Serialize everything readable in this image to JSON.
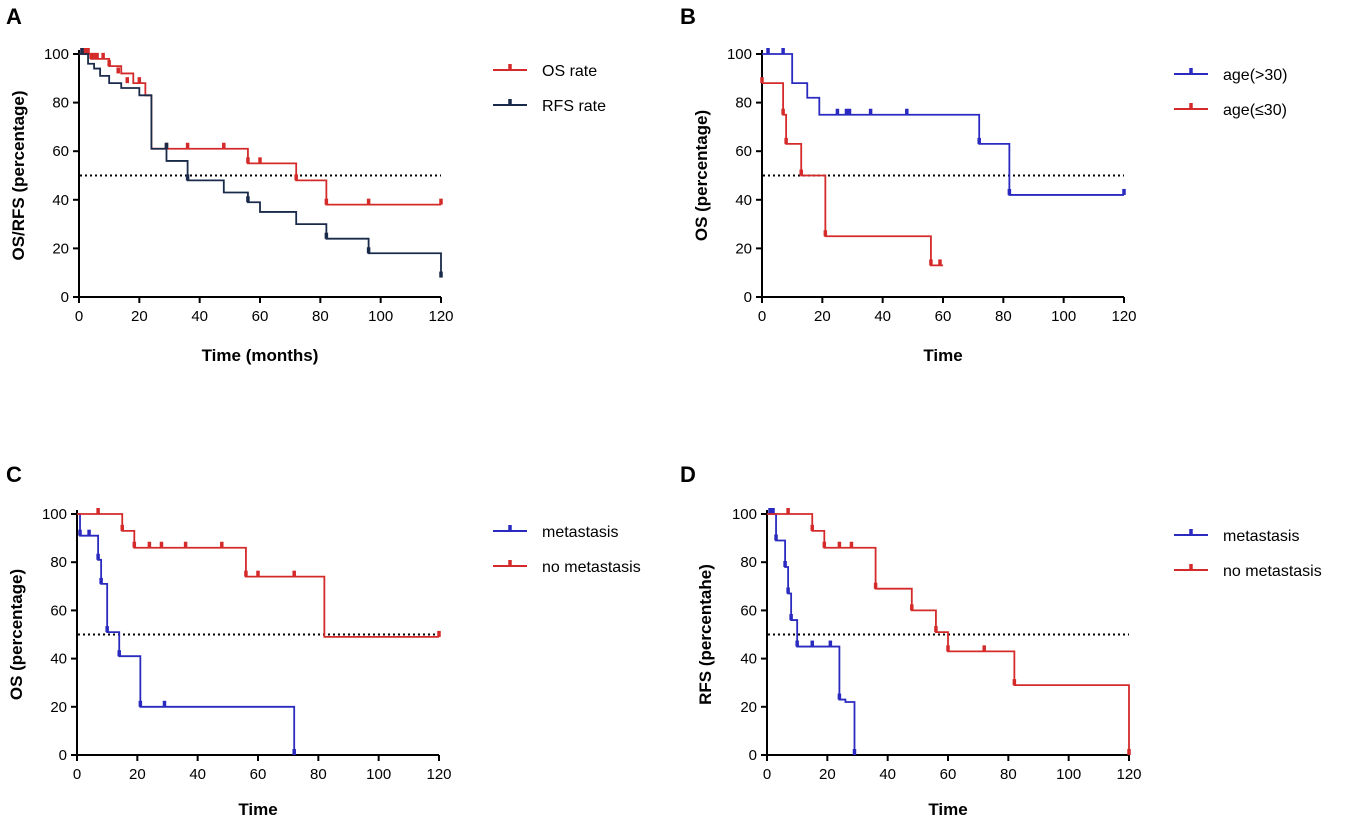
{
  "colors": {
    "red": "#d42a2a",
    "darkblue": "#1a2a4a",
    "blue": "#2a2ac0",
    "axis": "#000000",
    "reference": "#000000"
  },
  "chart_data": [
    {
      "panel": "A",
      "type": "line",
      "step": true,
      "xlabel": "Time (months)",
      "ylabel": "OS/RFS (percentage)",
      "xlim": [
        0,
        120
      ],
      "ylim": [
        0,
        100
      ],
      "xticks": [
        0,
        20,
        40,
        60,
        80,
        100,
        120
      ],
      "yticks": [
        0,
        20,
        40,
        60,
        80,
        100
      ],
      "reference_y": 50,
      "legend": "top-right",
      "series": [
        {
          "name": "OS rate",
          "color": "#d42a2a",
          "x": [
            0,
            4,
            10,
            14,
            18,
            22,
            24,
            56,
            72,
            82,
            120
          ],
          "y": [
            100,
            98,
            95,
            92,
            88,
            83,
            61,
            55,
            48,
            38,
            38
          ],
          "censor_x": [
            1,
            2,
            3,
            4,
            5,
            6,
            8,
            10,
            13,
            16,
            20,
            29,
            36,
            48,
            56,
            60,
            72,
            82,
            96,
            120
          ],
          "censor_y": [
            100,
            100,
            100,
            98,
            98,
            98,
            98,
            95,
            92,
            88,
            88,
            61,
            61,
            61,
            55,
            55,
            48,
            38,
            38,
            38
          ]
        },
        {
          "name": "RFS rate",
          "color": "#1a2a4a",
          "x": [
            0,
            3,
            5,
            7,
            10,
            14,
            20,
            24,
            29,
            36,
            48,
            56,
            60,
            72,
            82,
            96,
            120
          ],
          "y": [
            100,
            96,
            94,
            91,
            88,
            86,
            83,
            61,
            56,
            48,
            43,
            39,
            35,
            30,
            24,
            18,
            8
          ],
          "censor_x": [
            1,
            29,
            36,
            56,
            82,
            96,
            120
          ],
          "censor_y": [
            100,
            61,
            48,
            39,
            24,
            18,
            8
          ]
        }
      ]
    },
    {
      "panel": "B",
      "type": "line",
      "step": true,
      "xlabel": "Time",
      "ylabel": "OS (percentage)",
      "xlim": [
        0,
        120
      ],
      "ylim": [
        0,
        100
      ],
      "xticks": [
        0,
        20,
        40,
        60,
        80,
        100,
        120
      ],
      "yticks": [
        0,
        20,
        40,
        60,
        80,
        100
      ],
      "reference_y": 50,
      "legend": "top-right",
      "series": [
        {
          "name": "age(>30)",
          "color": "#2a2ac0",
          "x": [
            0,
            10,
            15,
            19,
            72,
            82,
            120
          ],
          "y": [
            100,
            88,
            82,
            75,
            63,
            42,
            42
          ],
          "censor_x": [
            2,
            7,
            25,
            28,
            29,
            36,
            48,
            72,
            82,
            120
          ],
          "censor_y": [
            100,
            100,
            75,
            75,
            75,
            75,
            75,
            63,
            42,
            42
          ]
        },
        {
          "name": "age(≤30)",
          "color": "#d42a2a",
          "x": [
            0,
            7,
            8,
            13,
            21,
            56,
            60
          ],
          "y": [
            88,
            75,
            63,
            50,
            25,
            13,
            13
          ],
          "censor_x": [
            0,
            7,
            8,
            13,
            21,
            56,
            59
          ],
          "censor_y": [
            88,
            75,
            63,
            50,
            25,
            13,
            13
          ]
        }
      ]
    },
    {
      "panel": "C",
      "type": "line",
      "step": true,
      "xlabel": "Time",
      "ylabel": "OS (percentage)",
      "xlim": [
        0,
        120
      ],
      "ylim": [
        0,
        100
      ],
      "xticks": [
        0,
        20,
        40,
        60,
        80,
        100,
        120
      ],
      "yticks": [
        0,
        20,
        40,
        60,
        80,
        100
      ],
      "reference_y": 50,
      "legend": "top-right",
      "series": [
        {
          "name": "metastasis",
          "color": "#2a2ac0",
          "x": [
            0,
            1,
            7,
            8,
            10,
            14,
            21,
            72
          ],
          "y": [
            100,
            91,
            81,
            71,
            51,
            41,
            20,
            0
          ],
          "censor_x": [
            1,
            4,
            7,
            8,
            10,
            14,
            21,
            29,
            72
          ],
          "censor_y": [
            91,
            91,
            81,
            71,
            51,
            41,
            20,
            20,
            0
          ]
        },
        {
          "name": "no metastasis",
          "color": "#d42a2a",
          "x": [
            0,
            15,
            19,
            56,
            82,
            120
          ],
          "y": [
            100,
            93,
            86,
            74,
            49,
            49
          ],
          "censor_x": [
            7,
            15,
            19,
            24,
            28,
            36,
            48,
            56,
            60,
            72,
            120
          ],
          "censor_y": [
            100,
            93,
            86,
            86,
            86,
            86,
            86,
            74,
            74,
            74,
            49
          ]
        }
      ]
    },
    {
      "panel": "D",
      "type": "line",
      "step": true,
      "xlabel": "Time",
      "ylabel": "RFS (percentahe)",
      "xlim": [
        0,
        120
      ],
      "ylim": [
        0,
        100
      ],
      "xticks": [
        0,
        20,
        40,
        60,
        80,
        100,
        120
      ],
      "yticks": [
        0,
        20,
        40,
        60,
        80,
        100
      ],
      "reference_y": 50,
      "legend": "top-right",
      "series": [
        {
          "name": "metastasis",
          "color": "#2a2ac0",
          "x": [
            0,
            3,
            6,
            7,
            8,
            10,
            24,
            26,
            29
          ],
          "y": [
            100,
            89,
            78,
            67,
            56,
            45,
            23,
            22,
            0
          ],
          "censor_x": [
            1,
            2,
            3,
            6,
            7,
            8,
            10,
            15,
            21,
            24,
            29
          ],
          "censor_y": [
            100,
            100,
            89,
            78,
            67,
            56,
            45,
            45,
            45,
            23,
            0
          ]
        },
        {
          "name": "no metastasis",
          "color": "#d42a2a",
          "x": [
            0,
            15,
            19,
            36,
            48,
            56,
            60,
            82,
            120
          ],
          "y": [
            100,
            93,
            86,
            69,
            60,
            51,
            43,
            29,
            0
          ],
          "censor_x": [
            7,
            15,
            19,
            24,
            28,
            36,
            48,
            56,
            60,
            72,
            82,
            120
          ],
          "censor_y": [
            100,
            93,
            86,
            86,
            86,
            69,
            60,
            51,
            43,
            43,
            29,
            0
          ]
        }
      ]
    }
  ]
}
